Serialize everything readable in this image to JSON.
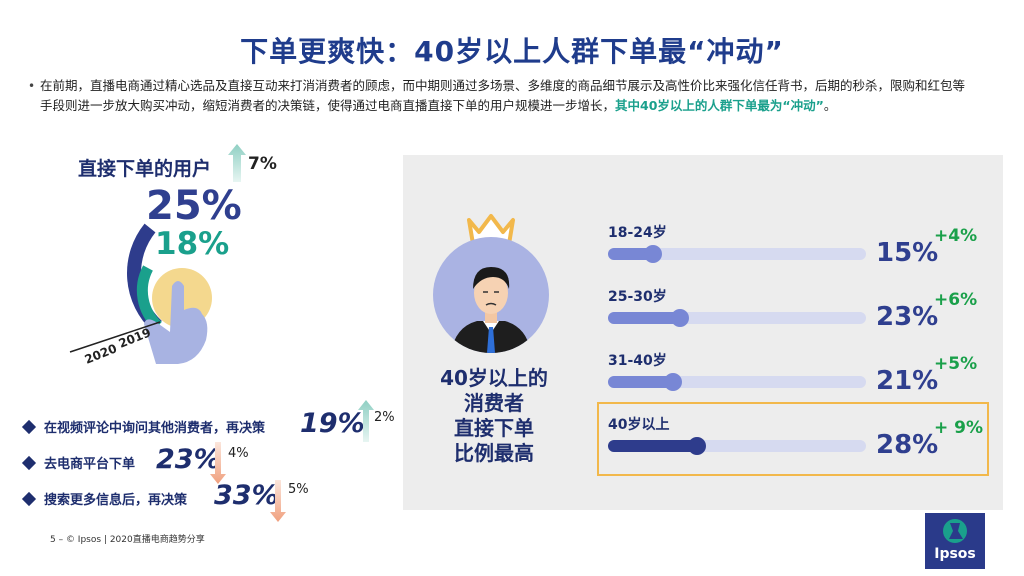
{
  "title": "下单更爽快：40岁以上人群下单最“冲动”",
  "bullet": {
    "text": "在前期，直播电商通过精心选品及直接互动来打消消费者的顾虑，而中期则通过多场景、多维度的商品细节展示及高性价比来强化信任背书，后期的秒杀，限购和红包等手段则进一步放大购买冲动，缩短消费者的决策链，使得通过电商直播直接下单的用户规模进一步增长，",
    "highlight": "其中40岁以上的人群下单最为“冲动”",
    "end": "。"
  },
  "left": {
    "subtitle": "直接下单的用户",
    "change": "7%",
    "value_2020": "25%",
    "value_2019": "18%",
    "year_2020": "2020",
    "year_2019": "2019"
  },
  "list": [
    {
      "label": "在视频评论中询问其他消费者，再决策",
      "value": "19%",
      "change": "2%",
      "direction": "up"
    },
    {
      "label": "去电商平台下单",
      "value": "23%",
      "change": "4%",
      "direction": "down"
    },
    {
      "label": "搜索更多信息后，再决策",
      "value": "33%",
      "change": "5%",
      "direction": "down"
    }
  ],
  "right_caption": [
    "40岁以上的",
    "消费者",
    "直接下单",
    "比例最高"
  ],
  "chart_data": {
    "type": "bar",
    "categories": [
      "18-24岁",
      "25-30岁",
      "31-40岁",
      "40岁以上"
    ],
    "values": [
      15,
      23,
      21,
      28
    ],
    "value_labels": [
      "15%",
      "23%",
      "21%",
      "28%"
    ],
    "changes": [
      "+4%",
      "+6%",
      "+5%",
      "+ 9%"
    ],
    "highlight_index": 3,
    "unit": "%"
  },
  "donut_data": {
    "2020": 25,
    "2019": 18
  },
  "colors": {
    "title": "#1f3c8c",
    "teal": "#1aa08c",
    "navy": "#2e3c8c",
    "bar_light": "#7887d5",
    "track": "#d6daf0",
    "green": "#1aa04a",
    "highlight_border": "#f2b84b"
  },
  "footer": "5 – © Ipsos | 2020直播电商趋势分享",
  "logo": "Ipsos"
}
